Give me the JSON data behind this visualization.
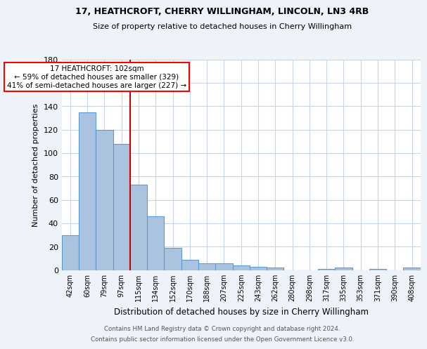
{
  "title1": "17, HEATHCROFT, CHERRY WILLINGHAM, LINCOLN, LN3 4RB",
  "title2": "Size of property relative to detached houses in Cherry Willingham",
  "xlabel": "Distribution of detached houses by size in Cherry Willingham",
  "ylabel": "Number of detached properties",
  "footer1": "Contains HM Land Registry data © Crown copyright and database right 2024.",
  "footer2": "Contains public sector information licensed under the Open Government Licence v3.0.",
  "annotation_line1": "17 HEATHCROFT: 102sqm",
  "annotation_line2": "← 59% of detached houses are smaller (329)",
  "annotation_line3": "41% of semi-detached houses are larger (227) →",
  "bar_labels": [
    "42sqm",
    "60sqm",
    "79sqm",
    "97sqm",
    "115sqm",
    "134sqm",
    "152sqm",
    "170sqm",
    "188sqm",
    "207sqm",
    "225sqm",
    "243sqm",
    "262sqm",
    "280sqm",
    "298sqm",
    "317sqm",
    "335sqm",
    "353sqm",
    "371sqm",
    "390sqm",
    "408sqm"
  ],
  "bar_values": [
    30,
    135,
    120,
    108,
    73,
    46,
    19,
    9,
    6,
    6,
    4,
    3,
    2,
    0,
    0,
    1,
    2,
    0,
    1,
    0,
    2
  ],
  "bar_color": "#aac4e0",
  "bar_edge_color": "#5b9bd5",
  "vline_x": 3.5,
  "vline_color": "#cc0000",
  "bg_color": "#eef3f9",
  "plot_bg_color": "#ffffff",
  "grid_color": "#c8d4e8",
  "ylim": [
    0,
    180
  ],
  "yticks": [
    0,
    20,
    40,
    60,
    80,
    100,
    120,
    140,
    160,
    180
  ]
}
